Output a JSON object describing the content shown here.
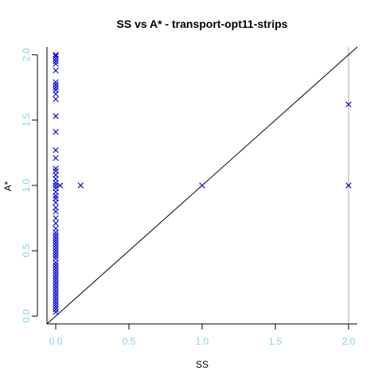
{
  "chart_data": {
    "type": "scatter",
    "title": "SS vs A* - transport-opt11-strips",
    "xlabel": "SS",
    "ylabel": "A*",
    "xlim": [
      -0.06,
      2.06
    ],
    "ylim": [
      -0.06,
      2.06
    ],
    "x_ticks": [
      "0.0",
      "0.5",
      "1.0",
      "1.5",
      "2.0"
    ],
    "y_ticks": [
      "0.0",
      "0.5",
      "1.0",
      "1.5",
      "2.0"
    ],
    "grid": false,
    "legend": "none",
    "marker": "x",
    "point_color": "#0000cc",
    "tick_color": "#87ceeb",
    "reference_line": "y = x",
    "vertical_line_x": 2.0,
    "points": [
      {
        "x": 0,
        "y": 2.0
      },
      {
        "x": 0,
        "y": 1.99
      },
      {
        "x": 0,
        "y": 1.97
      },
      {
        "x": 0,
        "y": 1.95
      },
      {
        "x": 0,
        "y": 1.93
      },
      {
        "x": 0,
        "y": 1.88
      },
      {
        "x": 0,
        "y": 1.79
      },
      {
        "x": 0,
        "y": 1.77
      },
      {
        "x": 0,
        "y": 1.75
      },
      {
        "x": 0,
        "y": 1.73
      },
      {
        "x": 0,
        "y": 1.7
      },
      {
        "x": 0,
        "y": 1.66
      },
      {
        "x": 0,
        "y": 1.53
      },
      {
        "x": 0,
        "y": 1.41
      },
      {
        "x": 0,
        "y": 1.27
      },
      {
        "x": 0,
        "y": 1.21
      },
      {
        "x": 0,
        "y": 1.13
      },
      {
        "x": 0,
        "y": 1.11
      },
      {
        "x": 0,
        "y": 1.08
      },
      {
        "x": 0,
        "y": 1.05
      },
      {
        "x": 0,
        "y": 1.02
      },
      {
        "x": 0,
        "y": 1.0
      },
      {
        "x": 0,
        "y": 0.98
      },
      {
        "x": 0,
        "y": 0.95
      },
      {
        "x": 0,
        "y": 0.92
      },
      {
        "x": 0,
        "y": 0.9
      },
      {
        "x": 0,
        "y": 0.87
      },
      {
        "x": 0,
        "y": 0.83
      },
      {
        "x": 0,
        "y": 0.8
      },
      {
        "x": 0,
        "y": 0.75
      },
      {
        "x": 0,
        "y": 0.71
      },
      {
        "x": 0,
        "y": 0.67
      },
      {
        "x": 0,
        "y": 0.64
      },
      {
        "x": 0,
        "y": 0.62
      },
      {
        "x": 0,
        "y": 0.6
      },
      {
        "x": 0,
        "y": 0.58
      },
      {
        "x": 0,
        "y": 0.56
      },
      {
        "x": 0,
        "y": 0.54
      },
      {
        "x": 0,
        "y": 0.52
      },
      {
        "x": 0,
        "y": 0.5
      },
      {
        "x": 0,
        "y": 0.48
      },
      {
        "x": 0,
        "y": 0.46
      },
      {
        "x": 0,
        "y": 0.44
      },
      {
        "x": 0,
        "y": 0.41
      },
      {
        "x": 0,
        "y": 0.39
      },
      {
        "x": 0,
        "y": 0.37
      },
      {
        "x": 0,
        "y": 0.35
      },
      {
        "x": 0,
        "y": 0.33
      },
      {
        "x": 0,
        "y": 0.31
      },
      {
        "x": 0,
        "y": 0.29
      },
      {
        "x": 0,
        "y": 0.27
      },
      {
        "x": 0,
        "y": 0.25
      },
      {
        "x": 0,
        "y": 0.23
      },
      {
        "x": 0,
        "y": 0.21
      },
      {
        "x": 0,
        "y": 0.19
      },
      {
        "x": 0,
        "y": 0.17
      },
      {
        "x": 0,
        "y": 0.15
      },
      {
        "x": 0,
        "y": 0.13
      },
      {
        "x": 0,
        "y": 0.11
      },
      {
        "x": 0,
        "y": 0.09
      },
      {
        "x": 0,
        "y": 0.07
      },
      {
        "x": 0,
        "y": 0.05
      },
      {
        "x": 0,
        "y": 0.03
      },
      {
        "x": 0.03,
        "y": 1.0
      },
      {
        "x": 0.17,
        "y": 1.0
      },
      {
        "x": 1.0,
        "y": 1.0
      },
      {
        "x": 2.0,
        "y": 1.62
      },
      {
        "x": 2.0,
        "y": 1.0
      }
    ]
  }
}
